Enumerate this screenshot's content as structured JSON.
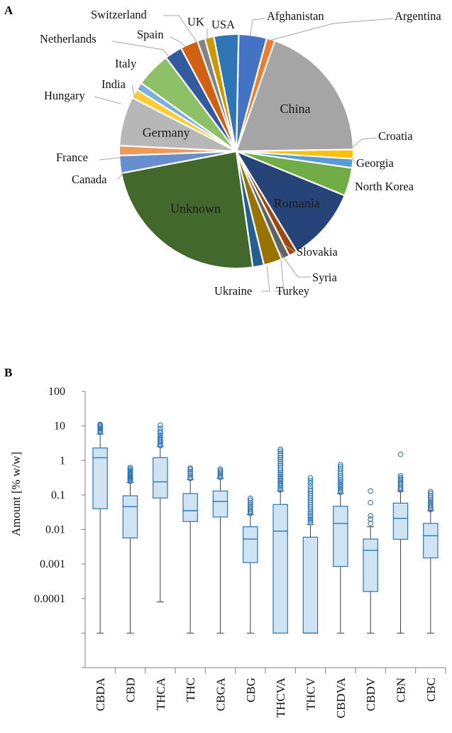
{
  "panels": {
    "a": "A",
    "b": "B"
  },
  "chart_data": [
    {
      "type": "pie",
      "title": "",
      "start_label": "Afghanistan",
      "series": [
        {
          "name": "Afghanistan",
          "value": 4.0,
          "color": "#4472c4"
        },
        {
          "name": "Argentina",
          "value": 1.2,
          "color": "#ed7d31"
        },
        {
          "name": "China",
          "value": 20.0,
          "color": "#a5a5a5"
        },
        {
          "name": "Croatia",
          "value": 1.3,
          "color": "#ffc000"
        },
        {
          "name": "Georgia",
          "value": 1.3,
          "color": "#5b9bd5"
        },
        {
          "name": "North Korea",
          "value": 4.0,
          "color": "#70ad47"
        },
        {
          "name": "Romania",
          "value": 10.5,
          "color": "#264478"
        },
        {
          "name": "Slovakia",
          "value": 1.2,
          "color": "#9e480e"
        },
        {
          "name": "Syria",
          "value": 1.2,
          "color": "#636363"
        },
        {
          "name": "Turkey",
          "value": 2.6,
          "color": "#997300"
        },
        {
          "name": "Ukraine",
          "value": 1.6,
          "color": "#255e91"
        },
        {
          "name": "Unknown",
          "value": 25.0,
          "color": "#43682b"
        },
        {
          "name": "Canada",
          "value": 2.5,
          "color": "#698ed0"
        },
        {
          "name": "France",
          "value": 1.4,
          "color": "#f1975a"
        },
        {
          "name": "Germany",
          "value": 7.0,
          "color": "#b7b7b7"
        },
        {
          "name": "Hungary",
          "value": 1.3,
          "color": "#ffcd33"
        },
        {
          "name": "India",
          "value": 1.1,
          "color": "#7cafdd"
        },
        {
          "name": "Italy",
          "value": 5.0,
          "color": "#8cc168"
        },
        {
          "name": "Netherlands",
          "value": 2.5,
          "color": "#335aa1"
        },
        {
          "name": "Spain",
          "value": 2.5,
          "color": "#d26012"
        },
        {
          "name": "Switzerland",
          "value": 1.1,
          "color": "#848484"
        },
        {
          "name": "UK",
          "value": 1.3,
          "color": "#cc9a00"
        },
        {
          "name": "USA",
          "value": 3.5,
          "color": "#2e75b6"
        }
      ]
    },
    {
      "type": "box",
      "title": "",
      "ylabel": "Amount [% w/w]",
      "yscale": "log",
      "ylim": [
        1e-06,
        100
      ],
      "yticks": [
        "100",
        "10",
        "1",
        "0.1",
        "0.01",
        "0.001",
        "0.0001"
      ],
      "categories": [
        "CBDA",
        "CBD",
        "THCA",
        "THC",
        "CBGA",
        "CBG",
        "THCVA",
        "THCV",
        "CBDVA",
        "CBDV",
        "CBN",
        "CBC"
      ],
      "boxes": [
        {
          "name": "CBDA",
          "whisker_low": 1e-05,
          "q1": 0.04,
          "median": 1.2,
          "q3": 2.3,
          "whisker_high": 5.8,
          "outliers": [
            6.5,
            7.0,
            7.6,
            8.3,
            9.0,
            9.8,
            10.5,
            11.0
          ]
        },
        {
          "name": "CBD",
          "whisker_low": 1e-05,
          "q1": 0.0057,
          "median": 0.046,
          "q3": 0.095,
          "whisker_high": 0.23,
          "outliers": [
            0.25,
            0.27,
            0.29,
            0.31,
            0.33,
            0.35,
            0.38,
            0.41,
            0.44,
            0.48,
            0.52,
            0.57,
            0.62
          ]
        },
        {
          "name": "THCA",
          "whisker_low": 8e-05,
          "q1": 0.082,
          "median": 0.24,
          "q3": 1.2,
          "whisker_high": 2.5,
          "outliers": [
            2.7,
            2.9,
            3.2,
            3.5,
            3.9,
            4.3,
            4.8,
            5.4,
            6.2,
            7.0,
            8.5,
            10.5
          ]
        },
        {
          "name": "THC",
          "whisker_low": 1e-05,
          "q1": 0.017,
          "median": 0.035,
          "q3": 0.11,
          "whisker_high": 0.28,
          "outliers": [
            0.3,
            0.33,
            0.37,
            0.42,
            0.48,
            0.55,
            0.6
          ]
        },
        {
          "name": "CBGA",
          "whisker_low": 1e-05,
          "q1": 0.023,
          "median": 0.065,
          "q3": 0.13,
          "whisker_high": 0.3,
          "outliers": [
            0.32,
            0.35,
            0.38,
            0.42,
            0.46,
            0.51,
            0.56
          ]
        },
        {
          "name": "CBG",
          "whisker_low": 1e-05,
          "q1": 0.0011,
          "median": 0.0053,
          "q3": 0.012,
          "whisker_high": 0.027,
          "outliers": [
            0.029,
            0.032,
            0.035,
            0.039,
            0.043,
            0.048,
            0.053,
            0.06,
            0.07,
            0.08
          ]
        },
        {
          "name": "THCVA",
          "whisker_low": 1e-05,
          "q1": 1e-05,
          "median": 0.009,
          "q3": 0.053,
          "whisker_high": 0.13,
          "outliers": [
            0.14,
            0.16,
            0.18,
            0.2,
            0.22,
            0.25,
            0.28,
            0.31,
            0.35,
            0.4,
            0.45,
            0.52,
            0.6,
            0.7,
            0.8,
            0.92,
            1.05,
            1.2,
            1.4,
            1.6,
            1.85,
            2.1
          ]
        },
        {
          "name": "THCV",
          "whisker_low": 1e-05,
          "q1": 1e-05,
          "median": 1e-05,
          "q3": 0.006,
          "whisker_high": 0.014,
          "outliers": [
            0.016,
            0.018,
            0.02,
            0.023,
            0.026,
            0.03,
            0.034,
            0.039,
            0.045,
            0.052,
            0.06,
            0.07,
            0.082,
            0.095,
            0.11,
            0.13,
            0.15,
            0.18,
            0.22,
            0.26,
            0.31
          ]
        },
        {
          "name": "CBDVA",
          "whisker_low": 1e-05,
          "q1": 0.00085,
          "median": 0.015,
          "q3": 0.047,
          "whisker_high": 0.11,
          "outliers": [
            0.12,
            0.135,
            0.15,
            0.17,
            0.19,
            0.21,
            0.24,
            0.27,
            0.31,
            0.36,
            0.42,
            0.49,
            0.57,
            0.66,
            0.75
          ]
        },
        {
          "name": "CBDV",
          "whisker_low": 1e-05,
          "q1": 0.00016,
          "median": 0.0025,
          "q3": 0.0053,
          "whisker_high": 0.012,
          "outliers": [
            0.015,
            0.02,
            0.025,
            0.06,
            0.13
          ]
        },
        {
          "name": "CBN",
          "whisker_low": 1e-05,
          "q1": 0.0052,
          "median": 0.021,
          "q3": 0.058,
          "whisker_high": 0.13,
          "outliers": [
            0.14,
            0.155,
            0.17,
            0.19,
            0.21,
            0.23,
            0.26,
            0.29,
            0.32,
            0.36,
            1.5
          ]
        },
        {
          "name": "CBC",
          "whisker_low": 1e-05,
          "q1": 0.0015,
          "median": 0.0066,
          "q3": 0.015,
          "whisker_high": 0.035,
          "outliers": [
            0.038,
            0.042,
            0.046,
            0.051,
            0.057,
            0.064,
            0.072,
            0.082,
            0.095,
            0.11,
            0.125
          ]
        }
      ]
    }
  ]
}
